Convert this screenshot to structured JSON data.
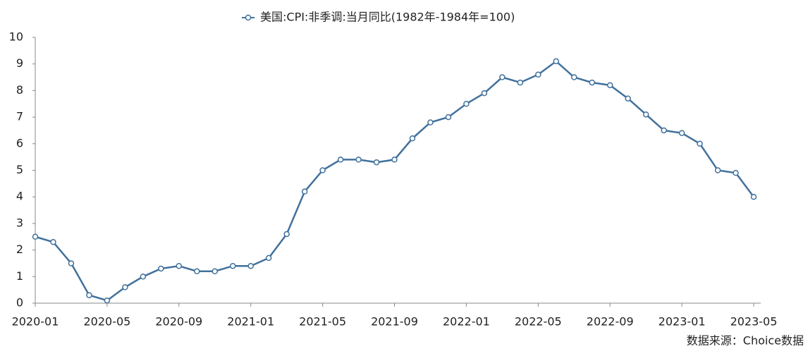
{
  "chart_data": {
    "type": "line",
    "source": "数据来源：Choice数据",
    "categories": [
      "2020-01",
      null,
      null,
      null,
      "2020-05",
      null,
      null,
      null,
      "2020-09",
      null,
      null,
      null,
      "2021-01",
      null,
      null,
      null,
      "2021-05",
      null,
      null,
      null,
      "2021-09",
      null,
      null,
      null,
      "2022-01",
      null,
      null,
      null,
      "2022-05",
      null,
      null,
      null,
      "2022-09",
      null,
      null,
      null,
      "2023-01",
      null,
      null,
      null,
      "2023-05"
    ],
    "series": [
      {
        "name": "美国:CPI:非季调:当月同比(1982年-1984年=100)",
        "color": "#41719c",
        "values": [
          2.5,
          2.3,
          1.5,
          0.3,
          0.1,
          0.6,
          1.0,
          1.3,
          1.4,
          1.2,
          1.2,
          1.4,
          1.4,
          1.7,
          2.6,
          4.2,
          5.0,
          5.4,
          5.4,
          5.3,
          5.4,
          6.2,
          6.8,
          7.0,
          7.5,
          7.9,
          8.5,
          8.3,
          8.6,
          9.1,
          8.5,
          8.3,
          8.2,
          7.7,
          7.1,
          6.5,
          6.4,
          6.0,
          5.0,
          4.9,
          4.0
        ]
      }
    ],
    "ylim": [
      0,
      10
    ],
    "yticks": [
      0,
      1,
      2,
      3,
      4,
      5,
      6,
      7,
      8,
      9,
      10
    ],
    "legend": "top",
    "grid": false
  }
}
